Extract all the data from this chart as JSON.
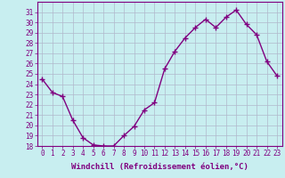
{
  "x": [
    0,
    1,
    2,
    3,
    4,
    5,
    6,
    7,
    8,
    9,
    10,
    11,
    12,
    13,
    14,
    15,
    16,
    17,
    18,
    19,
    20,
    21,
    22,
    23
  ],
  "y": [
    24.5,
    23.2,
    22.8,
    20.5,
    18.8,
    18.1,
    18.0,
    18.0,
    19.0,
    19.9,
    21.5,
    22.2,
    25.5,
    27.2,
    28.5,
    29.5,
    30.3,
    29.5,
    30.5,
    31.2,
    29.8,
    28.8,
    26.2,
    24.8
  ],
  "line_color": "#800080",
  "marker": "+",
  "marker_size": 4,
  "bg_color": "#c8eef0",
  "grid_color": "#b0b8cc",
  "xlabel": "Windchill (Refroidissement éolien,°C)",
  "ylim": [
    18,
    32
  ],
  "xlim": [
    -0.5,
    23.5
  ],
  "yticks": [
    18,
    19,
    20,
    21,
    22,
    23,
    24,
    25,
    26,
    27,
    28,
    29,
    30,
    31
  ],
  "xticks": [
    0,
    1,
    2,
    3,
    4,
    5,
    6,
    7,
    8,
    9,
    10,
    11,
    12,
    13,
    14,
    15,
    16,
    17,
    18,
    19,
    20,
    21,
    22,
    23
  ],
  "xlabel_fontsize": 6.5,
  "tick_fontsize": 5.5,
  "line_width": 1.0,
  "axis_color": "#800080",
  "spine_color": "#800080"
}
